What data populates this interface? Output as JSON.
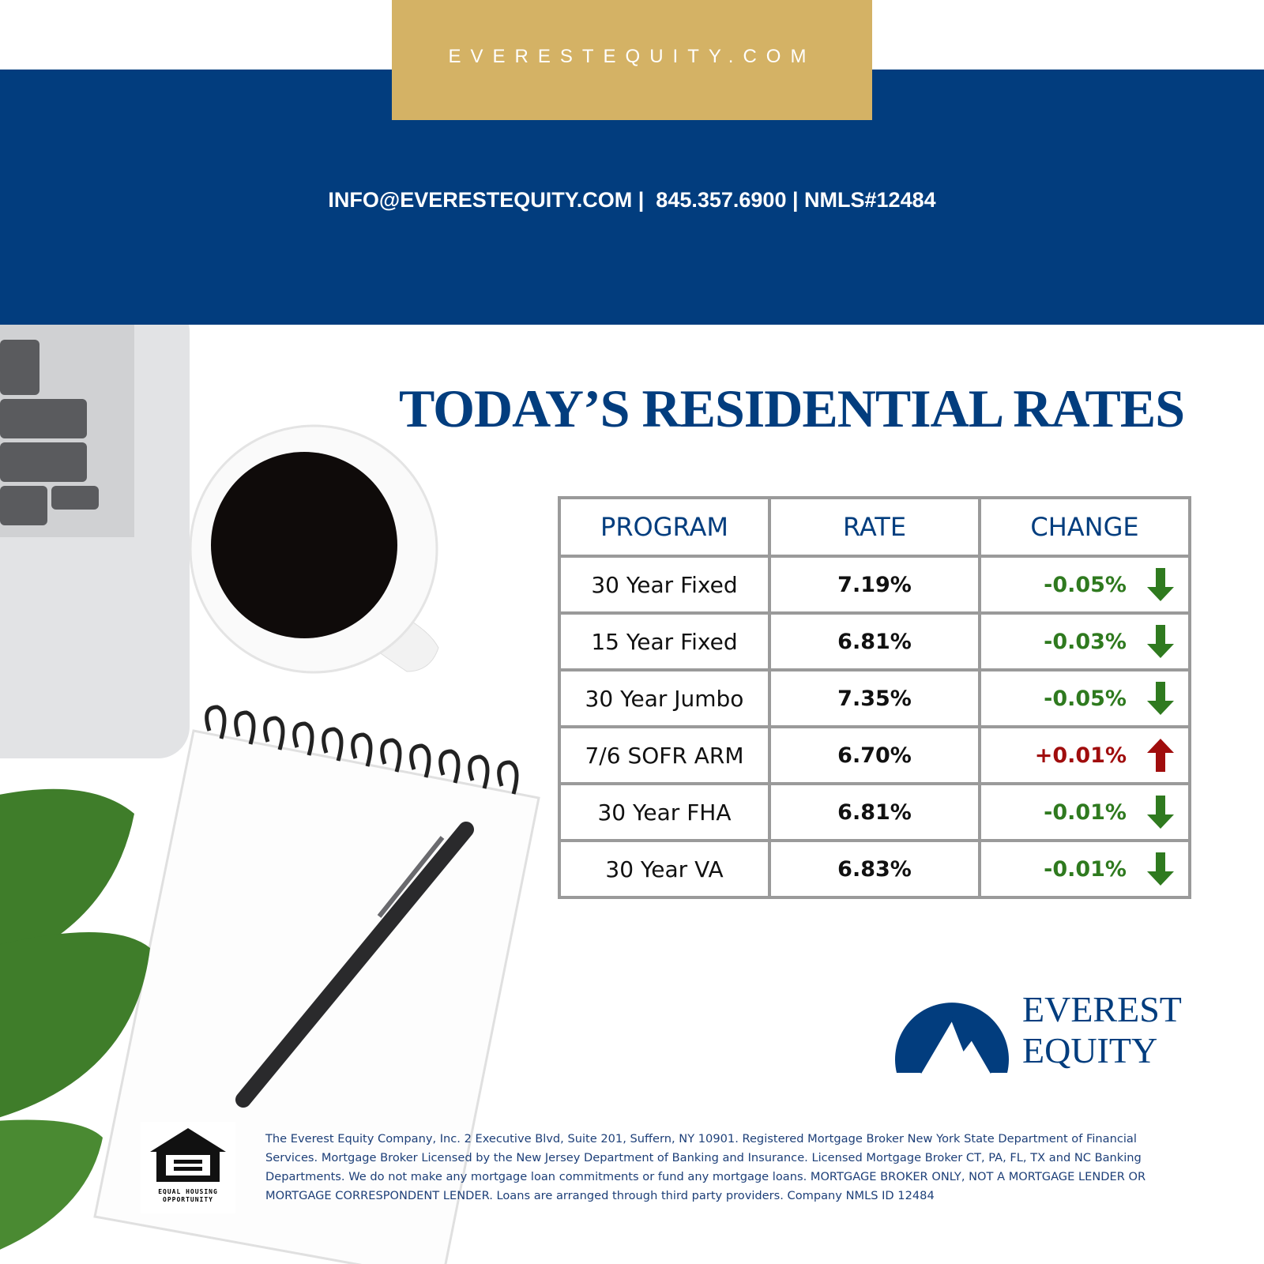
{
  "header": {
    "website": "EVERESTEQUITY.COM",
    "contact": "INFO@EVERESTEQUITY.COM |  845.357.6900 | NMLS#12484"
  },
  "title": "TODAY’S RESIDENTIAL RATES",
  "table": {
    "headers": [
      "PROGRAM",
      "RATE",
      "CHANGE"
    ],
    "rows": [
      [
        "30 Year Fixed",
        "7.19%",
        "-0.05%"
      ],
      [
        "15 Year Fixed",
        "6.81%",
        "-0.03%"
      ],
      [
        "30 Year Jumbo",
        "7.35%",
        "-0.05%"
      ],
      [
        "7/6 SOFR ARM",
        "6.70%",
        "+0.01%"
      ],
      [
        "30 Year FHA",
        "6.81%",
        "-0.01%"
      ],
      [
        "30 Year VA",
        "6.83%",
        "-0.01%"
      ]
    ]
  },
  "logo": {
    "line1": "EVEREST",
    "line2": "EQUITY"
  },
  "equal_housing": {
    "line1": "EQUAL HOUSING",
    "line2": "OPPORTUNITY"
  },
  "disclaimer": "The Everest Equity Company, Inc. 2 Executive Blvd, Suite 201, Suffern, NY 10901. Registered Mortgage Broker New York State Department of Financial Services. Mortgage Broker Licensed by the New Jersey Department of Banking and Insurance. Licensed Mortgage Broker CT, PA, FL, TX and NC Banking Departments. We do not make any mortgage loan commitments or fund any mortgage loans. MORTGAGE BROKER ONLY, NOT A MORTGAGE LENDER OR MORTGAGE CORRESPONDENT LENDER. Loans are arranged through third party providers. Company NMLS ID 12484"
}
